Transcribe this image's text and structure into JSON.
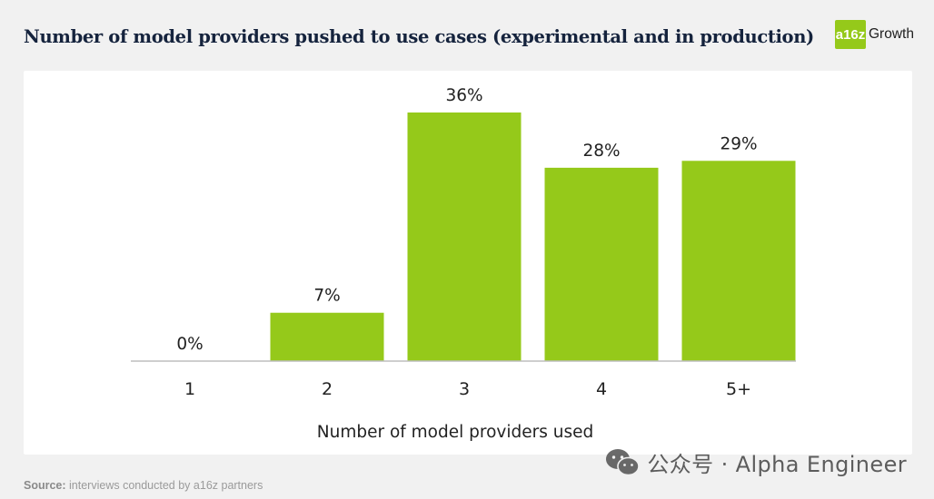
{
  "header": {
    "title": "Number of model providers pushed to use cases (experimental and in production)",
    "brand_logo": "a16z",
    "brand_name": "Growth"
  },
  "colors": {
    "bar": "#95c91a",
    "axis": "#bdbdbd",
    "text": "#222222",
    "title": "#15233d",
    "brand": "#95c91a"
  },
  "chart_data": {
    "type": "bar",
    "title": "Number of model providers pushed to use cases (experimental and in production)",
    "categories": [
      "1",
      "2",
      "3",
      "4",
      "5+"
    ],
    "values": [
      0,
      7,
      36,
      28,
      29
    ],
    "labels": [
      "0%",
      "7%",
      "36%",
      "28%",
      "29%"
    ],
    "xlabel": "Number of model providers used",
    "ylabel": "",
    "ylim": [
      0,
      36
    ],
    "grid": false,
    "legend": "none"
  },
  "watermark": {
    "icon": "wechat-icon",
    "text": "公众号 · Alpha Engineer"
  },
  "source": {
    "label": "Source:",
    "text": "interviews conducted by a16z partners"
  }
}
